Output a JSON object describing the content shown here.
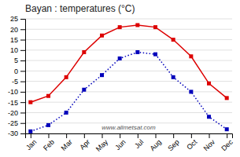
{
  "chart_data": {
    "type": "line",
    "title": "Bayan : temperatures (°C)",
    "categories": [
      "Jan",
      "Feb",
      "Mar",
      "Apr",
      "May",
      "Jun",
      "Jul",
      "Aug",
      "Sep",
      "Oct",
      "Nov",
      "Dec"
    ],
    "series": [
      {
        "color": "#dd0000",
        "marker": "square",
        "line_style": "solid",
        "values": [
          -15,
          -12,
          -3,
          9,
          17,
          21,
          22,
          21,
          15,
          7,
          -6,
          -13
        ]
      },
      {
        "color": "#0000bb",
        "marker": "square",
        "line_style": "dotted",
        "values": [
          -29,
          -26,
          -20,
          -9,
          -2,
          6,
          9,
          8,
          -3,
          -10,
          -22,
          -28
        ]
      }
    ],
    "ylim": [
      -30,
      25
    ],
    "yticks": [
      -30,
      -25,
      -20,
      -15,
      -10,
      -5,
      0,
      5,
      10,
      15,
      20,
      25
    ],
    "grid": "y",
    "annotations": [
      "www.allmetsat.com"
    ]
  }
}
